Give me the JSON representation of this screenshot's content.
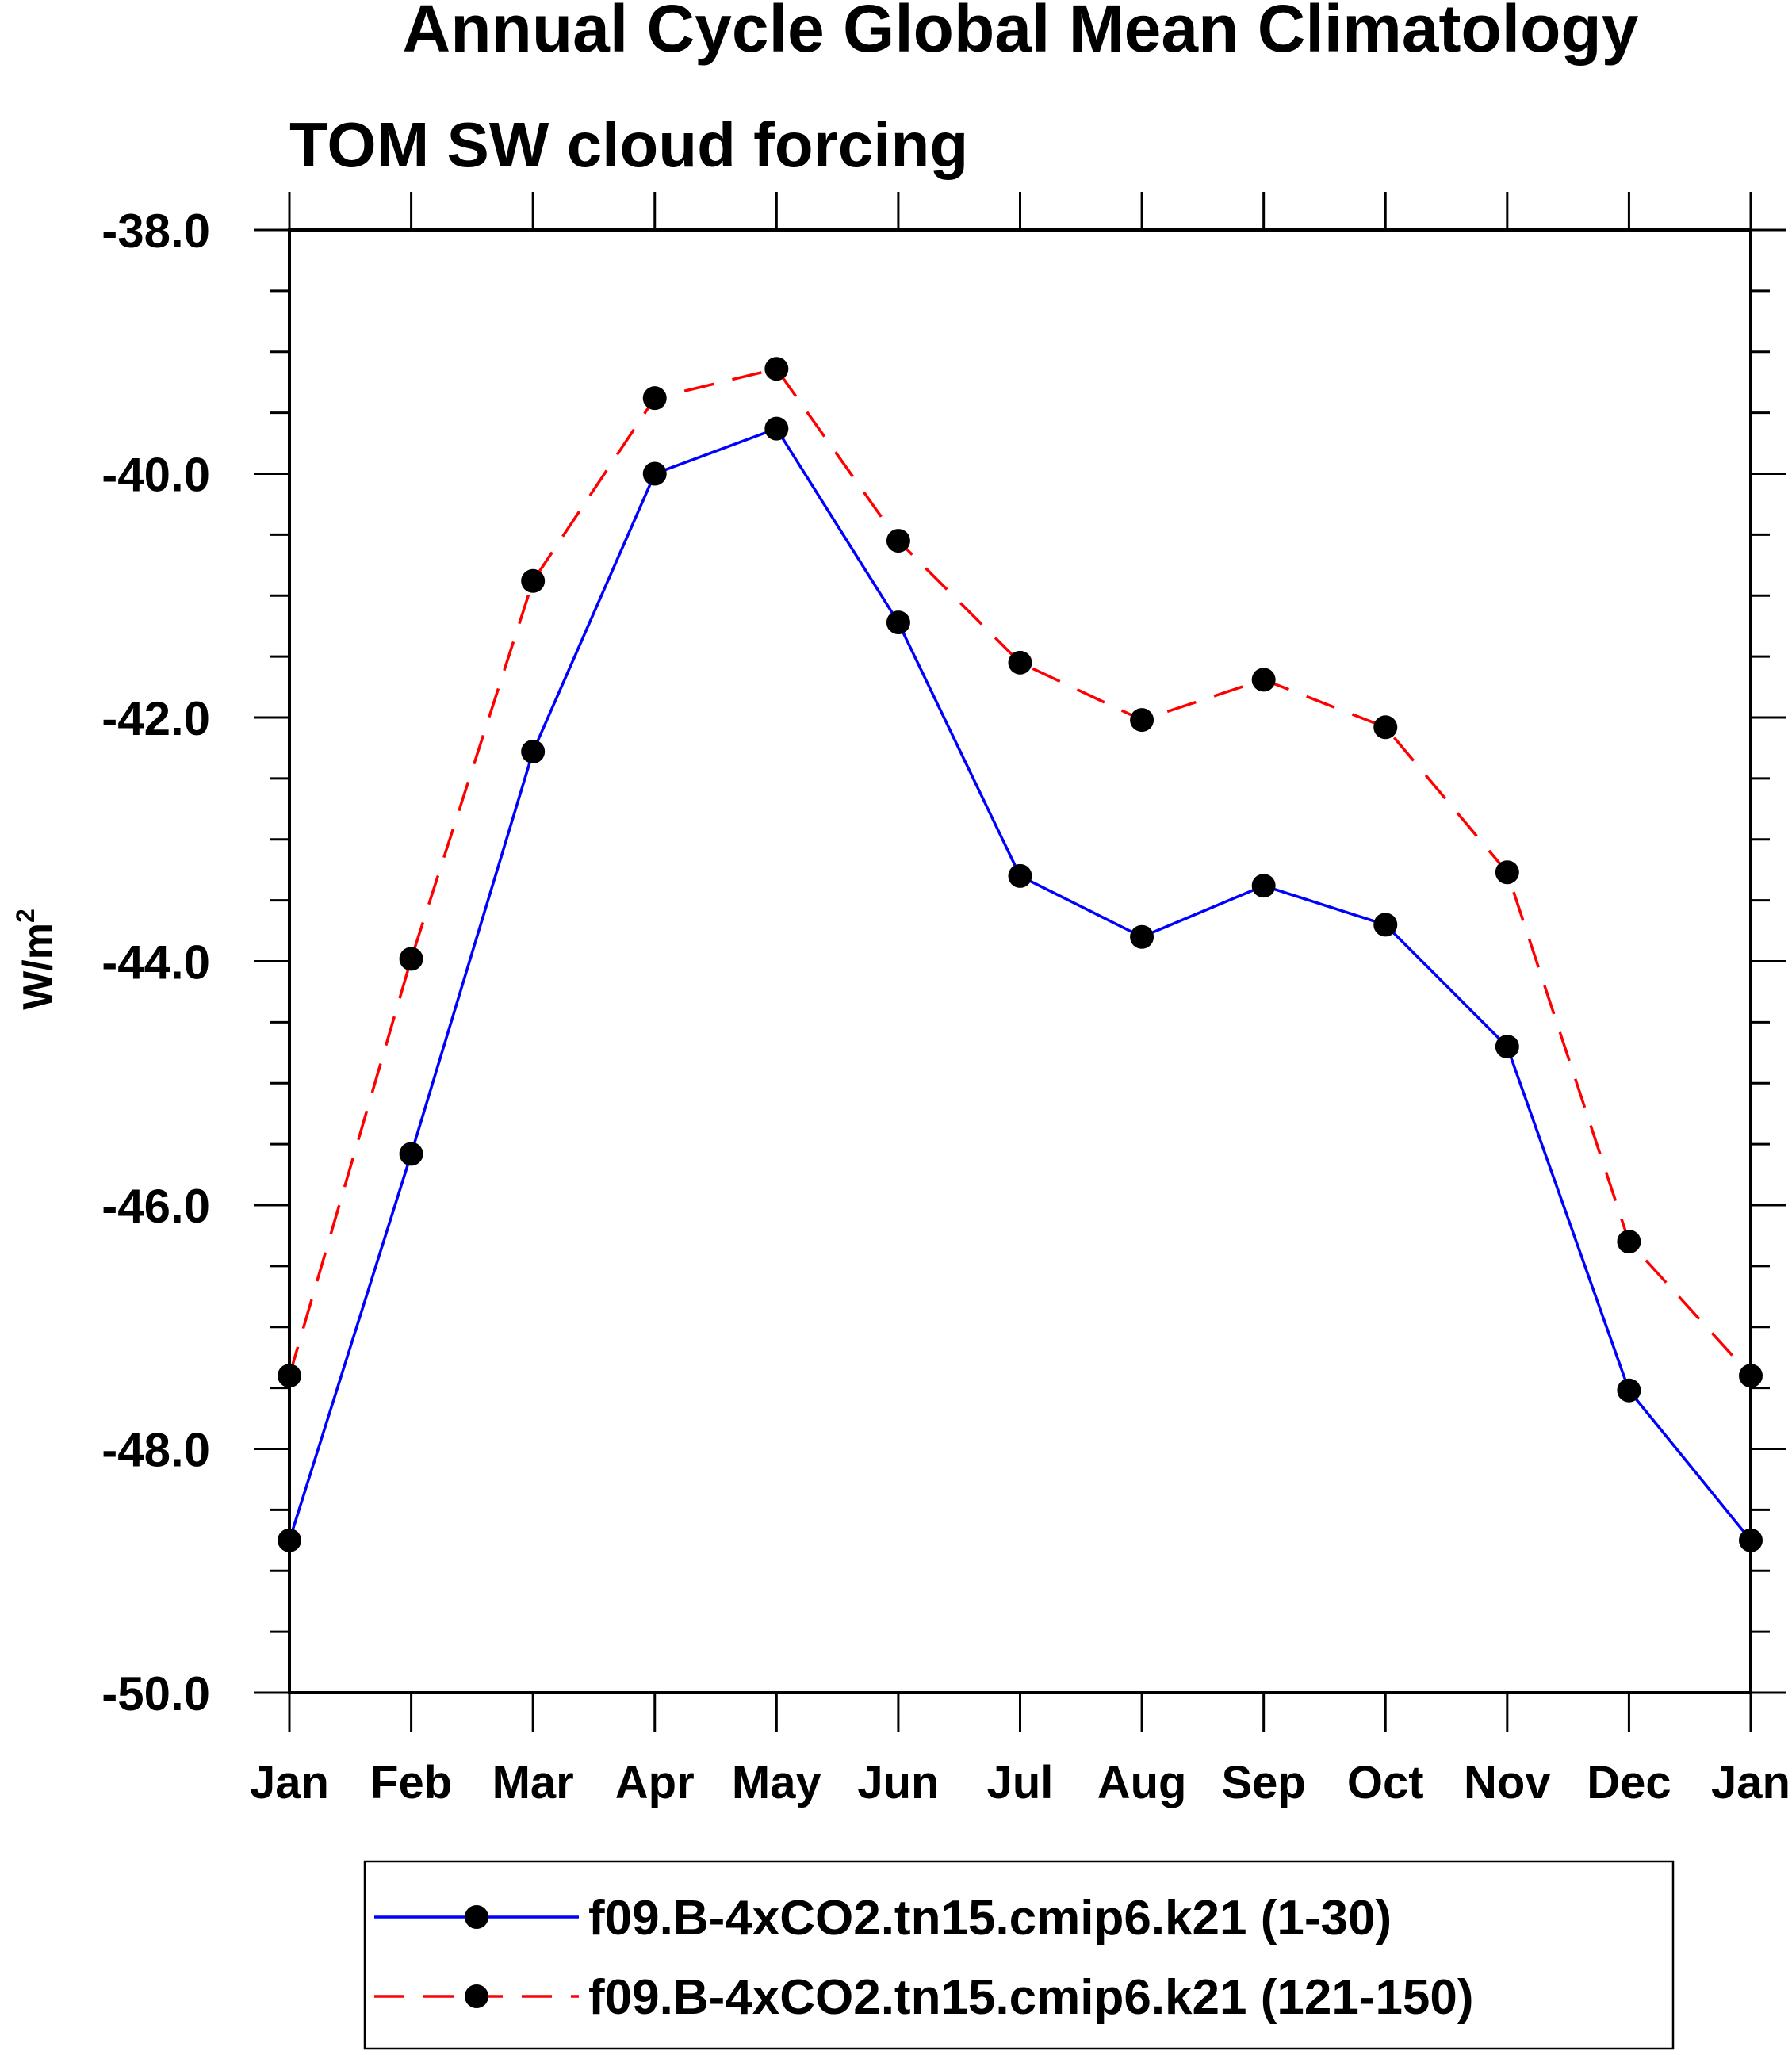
{
  "chart_data": {
    "type": "line",
    "title": "Annual Cycle Global Mean Climatology",
    "subtitle": "TOM SW cloud forcing",
    "ylabel": "W/m",
    "ylabel_superscript": "2",
    "ylim": [
      -50.0,
      -38.0
    ],
    "y_ticks": [
      "-38.0",
      "-40.0",
      "-42.0",
      "-44.0",
      "-46.0",
      "-48.0",
      "-50.0"
    ],
    "categories": [
      "Jan",
      "Feb",
      "Mar",
      "Apr",
      "May",
      "Jun",
      "Jul",
      "Aug",
      "Sep",
      "Oct",
      "Nov",
      "Dec",
      "Jan"
    ],
    "series": [
      {
        "name": "f09.B-4xCO2.tn15.cmip6.k21 (1-30)",
        "color": "#0000ff",
        "style": "solid",
        "values": [
          -48.75,
          -45.58,
          -42.28,
          -40.0,
          -39.63,
          -41.22,
          -43.3,
          -43.8,
          -43.38,
          -43.7,
          -44.7,
          -47.52,
          -48.75
        ]
      },
      {
        "name": "f09.B-4xCO2.tn15.cmip6.k21 (121-150)",
        "color": "#ff0000",
        "style": "dashed",
        "values": [
          -47.4,
          -43.98,
          -40.88,
          -39.38,
          -39.14,
          -40.55,
          -41.55,
          -42.02,
          -41.69,
          -42.08,
          -43.27,
          -46.3,
          -47.4
        ]
      }
    ],
    "marker": "filled-circle",
    "marker_color": "#000000",
    "legend": "bottom"
  }
}
